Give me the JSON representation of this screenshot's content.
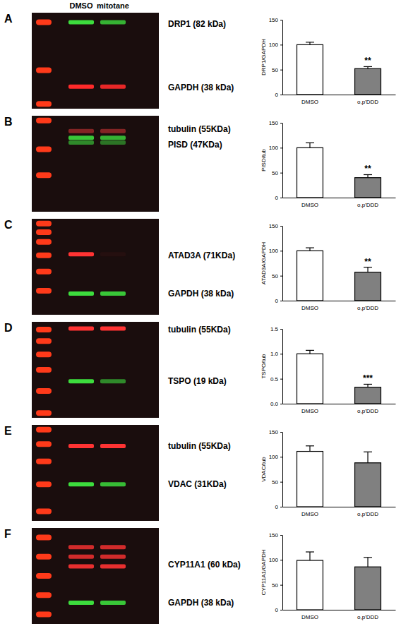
{
  "lane_labels": [
    "DMSO",
    "mitotane"
  ],
  "chart_data": [
    {
      "type": "bar",
      "panel_label": "A",
      "blot_labels": [
        "DRP1 (82 kDa)",
        "GAPDH (38 kDa)"
      ],
      "ylabel": "DRP1/GAPDH",
      "categories": [
        "DMSO",
        "o,p'DDD"
      ],
      "values": [
        100,
        52
      ],
      "errors": [
        5,
        4
      ],
      "colors": [
        "#ffffff",
        "#808080"
      ],
      "ylim": [
        0,
        150
      ],
      "yticks": [
        0,
        50,
        100,
        150
      ],
      "annotations": [
        {
          "text": "**",
          "category": 1
        }
      ]
    },
    {
      "type": "bar",
      "panel_label": "B",
      "blot_labels": [
        "tubulin (55KDa)",
        "PISD (47KDa)"
      ],
      "ylabel": "PISD/tub",
      "categories": [
        "DMSO",
        "o,p'DDD"
      ],
      "values": [
        100,
        40
      ],
      "errors": [
        10,
        6
      ],
      "colors": [
        "#ffffff",
        "#808080"
      ],
      "ylim": [
        0,
        150
      ],
      "yticks": [
        0,
        50,
        100,
        150
      ],
      "annotations": [
        {
          "text": "**",
          "category": 1
        }
      ]
    },
    {
      "type": "bar",
      "panel_label": "C",
      "blot_labels": [
        "ATAD3A (71KDa)",
        "GAPDH (38 kDa)"
      ],
      "ylabel": "ATAD3A/GAPDH",
      "categories": [
        "DMSO",
        "o,p'DDD"
      ],
      "values": [
        100,
        57
      ],
      "errors": [
        6,
        10
      ],
      "colors": [
        "#ffffff",
        "#808080"
      ],
      "ylim": [
        0,
        150
      ],
      "yticks": [
        0,
        50,
        100,
        150
      ],
      "annotations": [
        {
          "text": "**",
          "category": 1
        }
      ]
    },
    {
      "type": "bar",
      "panel_label": "D",
      "blot_labels": [
        "tubulin (55KDa)",
        "TSPO (19 kDa)"
      ],
      "ylabel": "TSPO/tub",
      "categories": [
        "DMSO",
        "o,p'DDD"
      ],
      "values": [
        1.0,
        0.33
      ],
      "errors": [
        0.07,
        0.06
      ],
      "colors": [
        "#ffffff",
        "#808080"
      ],
      "ylim": [
        0,
        1.5
      ],
      "yticks": [
        {
          "value": 0,
          "label": "0.0"
        },
        {
          "value": 0.5,
          "label": "0.5"
        },
        {
          "value": 1,
          "label": "1.0"
        },
        {
          "value": 1.5,
          "label": "1.5"
        }
      ],
      "annotations": [
        {
          "text": "***",
          "category": 1
        }
      ]
    },
    {
      "type": "bar",
      "panel_label": "E",
      "blot_labels": [
        "tubulin (55KDa)",
        "VDAC (31KDa)"
      ],
      "ylabel": "VDAC/tub",
      "categories": [
        "DMSO",
        "o,p'DDD"
      ],
      "values": [
        111,
        88
      ],
      "errors": [
        11,
        22
      ],
      "colors": [
        "#ffffff",
        "#808080"
      ],
      "ylim": [
        0,
        150
      ],
      "yticks": [
        0,
        50,
        100,
        150
      ]
    },
    {
      "type": "bar",
      "panel_label": "F",
      "blot_labels": [
        "CYP11A1 (60 kDa)",
        "GAPDH (38 kDa)"
      ],
      "ylabel": "CYP11A1/GAPDH",
      "categories": [
        "DMSO",
        "o,p'DDD"
      ],
      "values": [
        99,
        86
      ],
      "errors": [
        17,
        19
      ],
      "colors": [
        "#ffffff",
        "#808080"
      ],
      "ylim": [
        0,
        150
      ],
      "yticks": [
        0,
        50,
        100,
        150
      ]
    }
  ]
}
